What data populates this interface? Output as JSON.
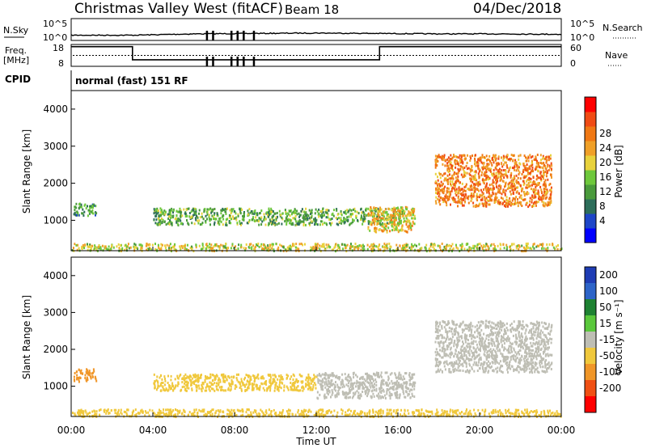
{
  "header": {
    "title": "Christmas Valley West (fitACF)",
    "beam": "Beam 18",
    "date": "04/Dec/2018"
  },
  "labels": {
    "nsky": "N.Sky",
    "nsearch": "N.Search",
    "freq": "Freq.",
    "mhz": "[MHz]",
    "nave": "Nave",
    "cpid": "CPID",
    "cpid_value": "normal (fast) 151 RF",
    "nsky_tick_hi": "10^5",
    "nsky_tick_lo": "10^0",
    "nsearch_tick_hi": "10^5",
    "nsearch_tick_lo": "10^0",
    "freq_tick_hi": "18",
    "freq_tick_lo": "8",
    "nave_tick_hi": "60",
    "nave_tick_lo": "0"
  },
  "chart_data": [
    {
      "type": "line",
      "name": "noise",
      "x_hours": [
        0,
        3,
        6,
        9,
        12,
        15,
        18,
        21,
        24
      ],
      "nsky_level": [
        1.2,
        1.2,
        1.5,
        1.6,
        1.7,
        1.6,
        1.5,
        1.5,
        1.4
      ],
      "freq_mhz": {
        "x": [
          0,
          3.0,
          3.0,
          15.1,
          15.1,
          24
        ],
        "y": [
          17,
          17,
          11,
          11,
          17,
          17
        ]
      },
      "nave": 30,
      "ylim_nsky": [
        "10^0",
        "10^5"
      ],
      "ylim_freq": [
        8,
        18
      ],
      "ylim_nave": [
        0,
        60
      ]
    },
    {
      "type": "heatmap",
      "name": "power",
      "xlabel": "",
      "ylabel": "Slant Range [km]",
      "xlim": [
        0,
        24
      ],
      "ylim": [
        180,
        4500
      ],
      "yticks": [
        1000,
        2000,
        3000,
        4000
      ],
      "colorbar_label": "Power [dB]",
      "colorbar_ticks": [
        "4",
        "8",
        "12",
        "16",
        "20",
        "24",
        "28"
      ],
      "colorbar_colors": [
        "#0000ff",
        "#1e46c8",
        "#2d6e5a",
        "#4a9a3c",
        "#6ec83c",
        "#e8d23c",
        "#f0a028",
        "#f07814",
        "#f04b14",
        "#ff0000"
      ],
      "regions": [
        {
          "x": [
            0.1,
            1.2
          ],
          "range": [
            1150,
            1500
          ],
          "level": 10
        },
        {
          "x": [
            0.0,
            24.0
          ],
          "range": [
            200,
            400
          ],
          "level": 16
        },
        {
          "x": [
            4.0,
            16.2
          ],
          "range": [
            900,
            1350
          ],
          "level": 12
        },
        {
          "x": [
            14.5,
            16.8
          ],
          "range": [
            700,
            1400
          ],
          "level": 18
        },
        {
          "x": [
            17.8,
            23.5
          ],
          "range": [
            1400,
            2800
          ],
          "level": 22
        }
      ]
    },
    {
      "type": "heatmap",
      "name": "velocity",
      "xlabel": "Time UT",
      "ylabel": "Slant Range [km]",
      "xlim": [
        0,
        24
      ],
      "ylim": [
        180,
        4500
      ],
      "yticks": [
        1000,
        2000,
        3000,
        4000
      ],
      "xticks": [
        "00:00",
        "04:00",
        "08:00",
        "12:00",
        "16:00",
        "20:00",
        "00:00"
      ],
      "colorbar_label": "Velocity [m s⁻¹]",
      "colorbar_ticks": [
        "200",
        "100",
        "50",
        "15",
        "-15",
        "-50",
        "-100",
        "-200"
      ],
      "colorbar_colors": [
        "#1e3cb4",
        "#2d64c8",
        "#1e8232",
        "#5ac83c",
        "#bebeb4",
        "#f0c83c",
        "#f09628",
        "#f05014",
        "#ff0000"
      ],
      "regions": [
        {
          "x": [
            0.1,
            1.2
          ],
          "range": [
            1150,
            1500
          ],
          "level": -60
        },
        {
          "x": [
            0.0,
            24.0
          ],
          "range": [
            200,
            400
          ],
          "level": -30
        },
        {
          "x": [
            4.0,
            12.0
          ],
          "range": [
            900,
            1350
          ],
          "level": -40
        },
        {
          "x": [
            12.0,
            16.8
          ],
          "range": [
            700,
            1400
          ],
          "level": 0
        },
        {
          "x": [
            17.8,
            23.5
          ],
          "range": [
            1400,
            2800
          ],
          "level": 0
        }
      ]
    }
  ]
}
